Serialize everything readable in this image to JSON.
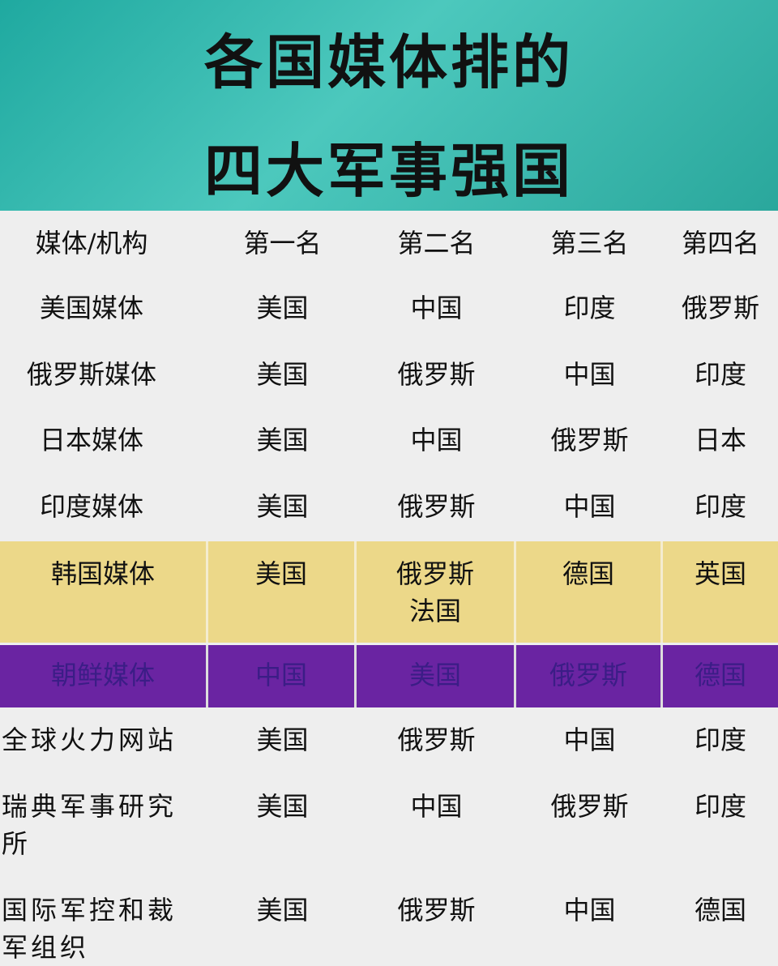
{
  "title": {
    "line1": "各国媒体排的",
    "line2": "四大军事强国"
  },
  "colors": {
    "title_bg": "#2aa79c",
    "highlight_yellow": "#ecd889",
    "highlight_purple": "#6a24a2"
  },
  "table": {
    "headers": [
      "媒体/机构",
      "第一名",
      "第二名",
      "第三名",
      "第四名"
    ],
    "rows": [
      [
        "美国媒体",
        "美国",
        "中国",
        "印度",
        "俄罗斯"
      ],
      [
        "俄罗斯媒体",
        "美国",
        "俄罗斯",
        "中国",
        "印度"
      ],
      [
        "日本媒体",
        "美国",
        "中国",
        "俄罗斯",
        "日本"
      ],
      [
        "印度媒体",
        "美国",
        "俄罗斯",
        "中国",
        "印度"
      ],
      [
        "韩国媒体",
        "美国",
        "俄罗斯\n法国",
        "德国",
        "英国"
      ],
      [
        "朝鲜媒体",
        "中国",
        "美国",
        "俄罗斯",
        "德国"
      ],
      [
        "全球火力网站",
        "美国",
        "俄罗斯",
        "中国",
        "印度"
      ],
      [
        "瑞典军事研究所",
        "美国",
        "中国",
        "俄罗斯",
        "印度"
      ],
      [
        "国际军控和裁军组织",
        "美国",
        "俄罗斯",
        "中国",
        "德国"
      ]
    ]
  }
}
